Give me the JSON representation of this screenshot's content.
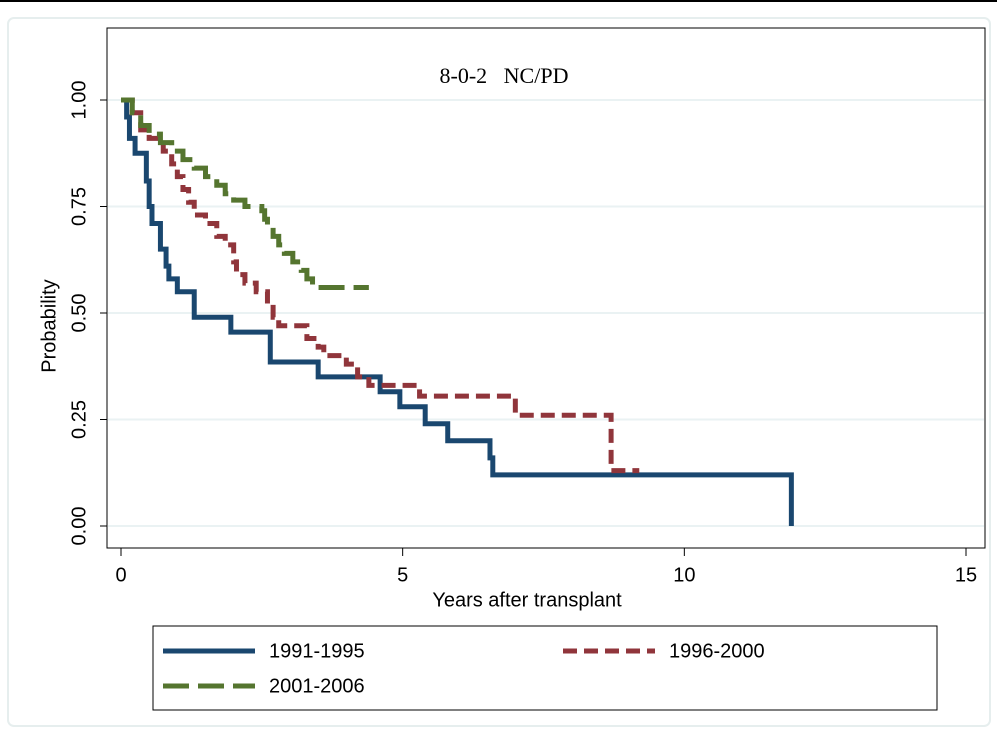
{
  "chart_data": {
    "type": "step",
    "title": "8-0-2   NC/PD",
    "x_label": "Years after transplant",
    "y_label": "Probability",
    "xlim": [
      0,
      15
    ],
    "xticks": [
      0,
      5,
      10,
      15
    ],
    "ylim": [
      0,
      1
    ],
    "yticks": [
      {
        "value": 0,
        "label": "0.00"
      },
      0.25,
      {
        "value": 0.5,
        "label": "0.50"
      },
      0.75,
      {
        "value": 1,
        "label": "1.00"
      }
    ],
    "grid": true,
    "series": [
      {
        "name": "1991-1995",
        "color": "#1a476f",
        "dash": "solid",
        "x": [
          0,
          0.1,
          0.15,
          0.25,
          0.45,
          0.5,
          0.55,
          0.7,
          0.8,
          0.85,
          1.0,
          1.3,
          1.95,
          2.65,
          3.5,
          4.6,
          4.95,
          5.4,
          5.8,
          6.55,
          6.6,
          11.9
        ],
        "values": [
          1.0,
          0.96,
          0.91,
          0.875,
          0.81,
          0.75,
          0.71,
          0.65,
          0.61,
          0.58,
          0.55,
          0.49,
          0.455,
          0.385,
          0.35,
          0.315,
          0.28,
          0.24,
          0.2,
          0.16,
          0.12,
          0
        ]
      },
      {
        "name": "1996-2000",
        "color": "#90353b",
        "dash": "short",
        "x": [
          0,
          0.2,
          0.35,
          0.5,
          0.75,
          0.9,
          1.0,
          1.1,
          1.2,
          1.3,
          1.5,
          1.7,
          1.85,
          2.0,
          2.05,
          2.2,
          2.4,
          2.6,
          2.7,
          2.8,
          3.3,
          3.5,
          3.6,
          4.0,
          4.2,
          4.4,
          5.3,
          7.0,
          8.7,
          9.2
        ],
        "values": [
          1.0,
          0.97,
          0.93,
          0.91,
          0.88,
          0.85,
          0.82,
          0.79,
          0.76,
          0.73,
          0.71,
          0.68,
          0.66,
          0.62,
          0.59,
          0.57,
          0.55,
          0.52,
          0.49,
          0.47,
          0.44,
          0.42,
          0.4,
          0.38,
          0.35,
          0.33,
          0.305,
          0.26,
          0.13,
          0.13
        ]
      },
      {
        "name": "2001-2006",
        "color": "#55752f",
        "dash": "long",
        "x": [
          0,
          0.2,
          0.35,
          0.5,
          0.7,
          0.9,
          1.1,
          1.3,
          1.5,
          1.7,
          1.85,
          2.0,
          2.2,
          2.5,
          2.55,
          2.6,
          2.7,
          2.8,
          2.9,
          3.05,
          3.2,
          3.3,
          3.4,
          4.4
        ],
        "values": [
          1.0,
          0.97,
          0.94,
          0.92,
          0.9,
          0.88,
          0.86,
          0.84,
          0.82,
          0.8,
          0.78,
          0.765,
          0.75,
          0.74,
          0.72,
          0.7,
          0.68,
          0.66,
          0.64,
          0.62,
          0.6,
          0.58,
          0.56,
          0.56
        ]
      }
    ]
  }
}
